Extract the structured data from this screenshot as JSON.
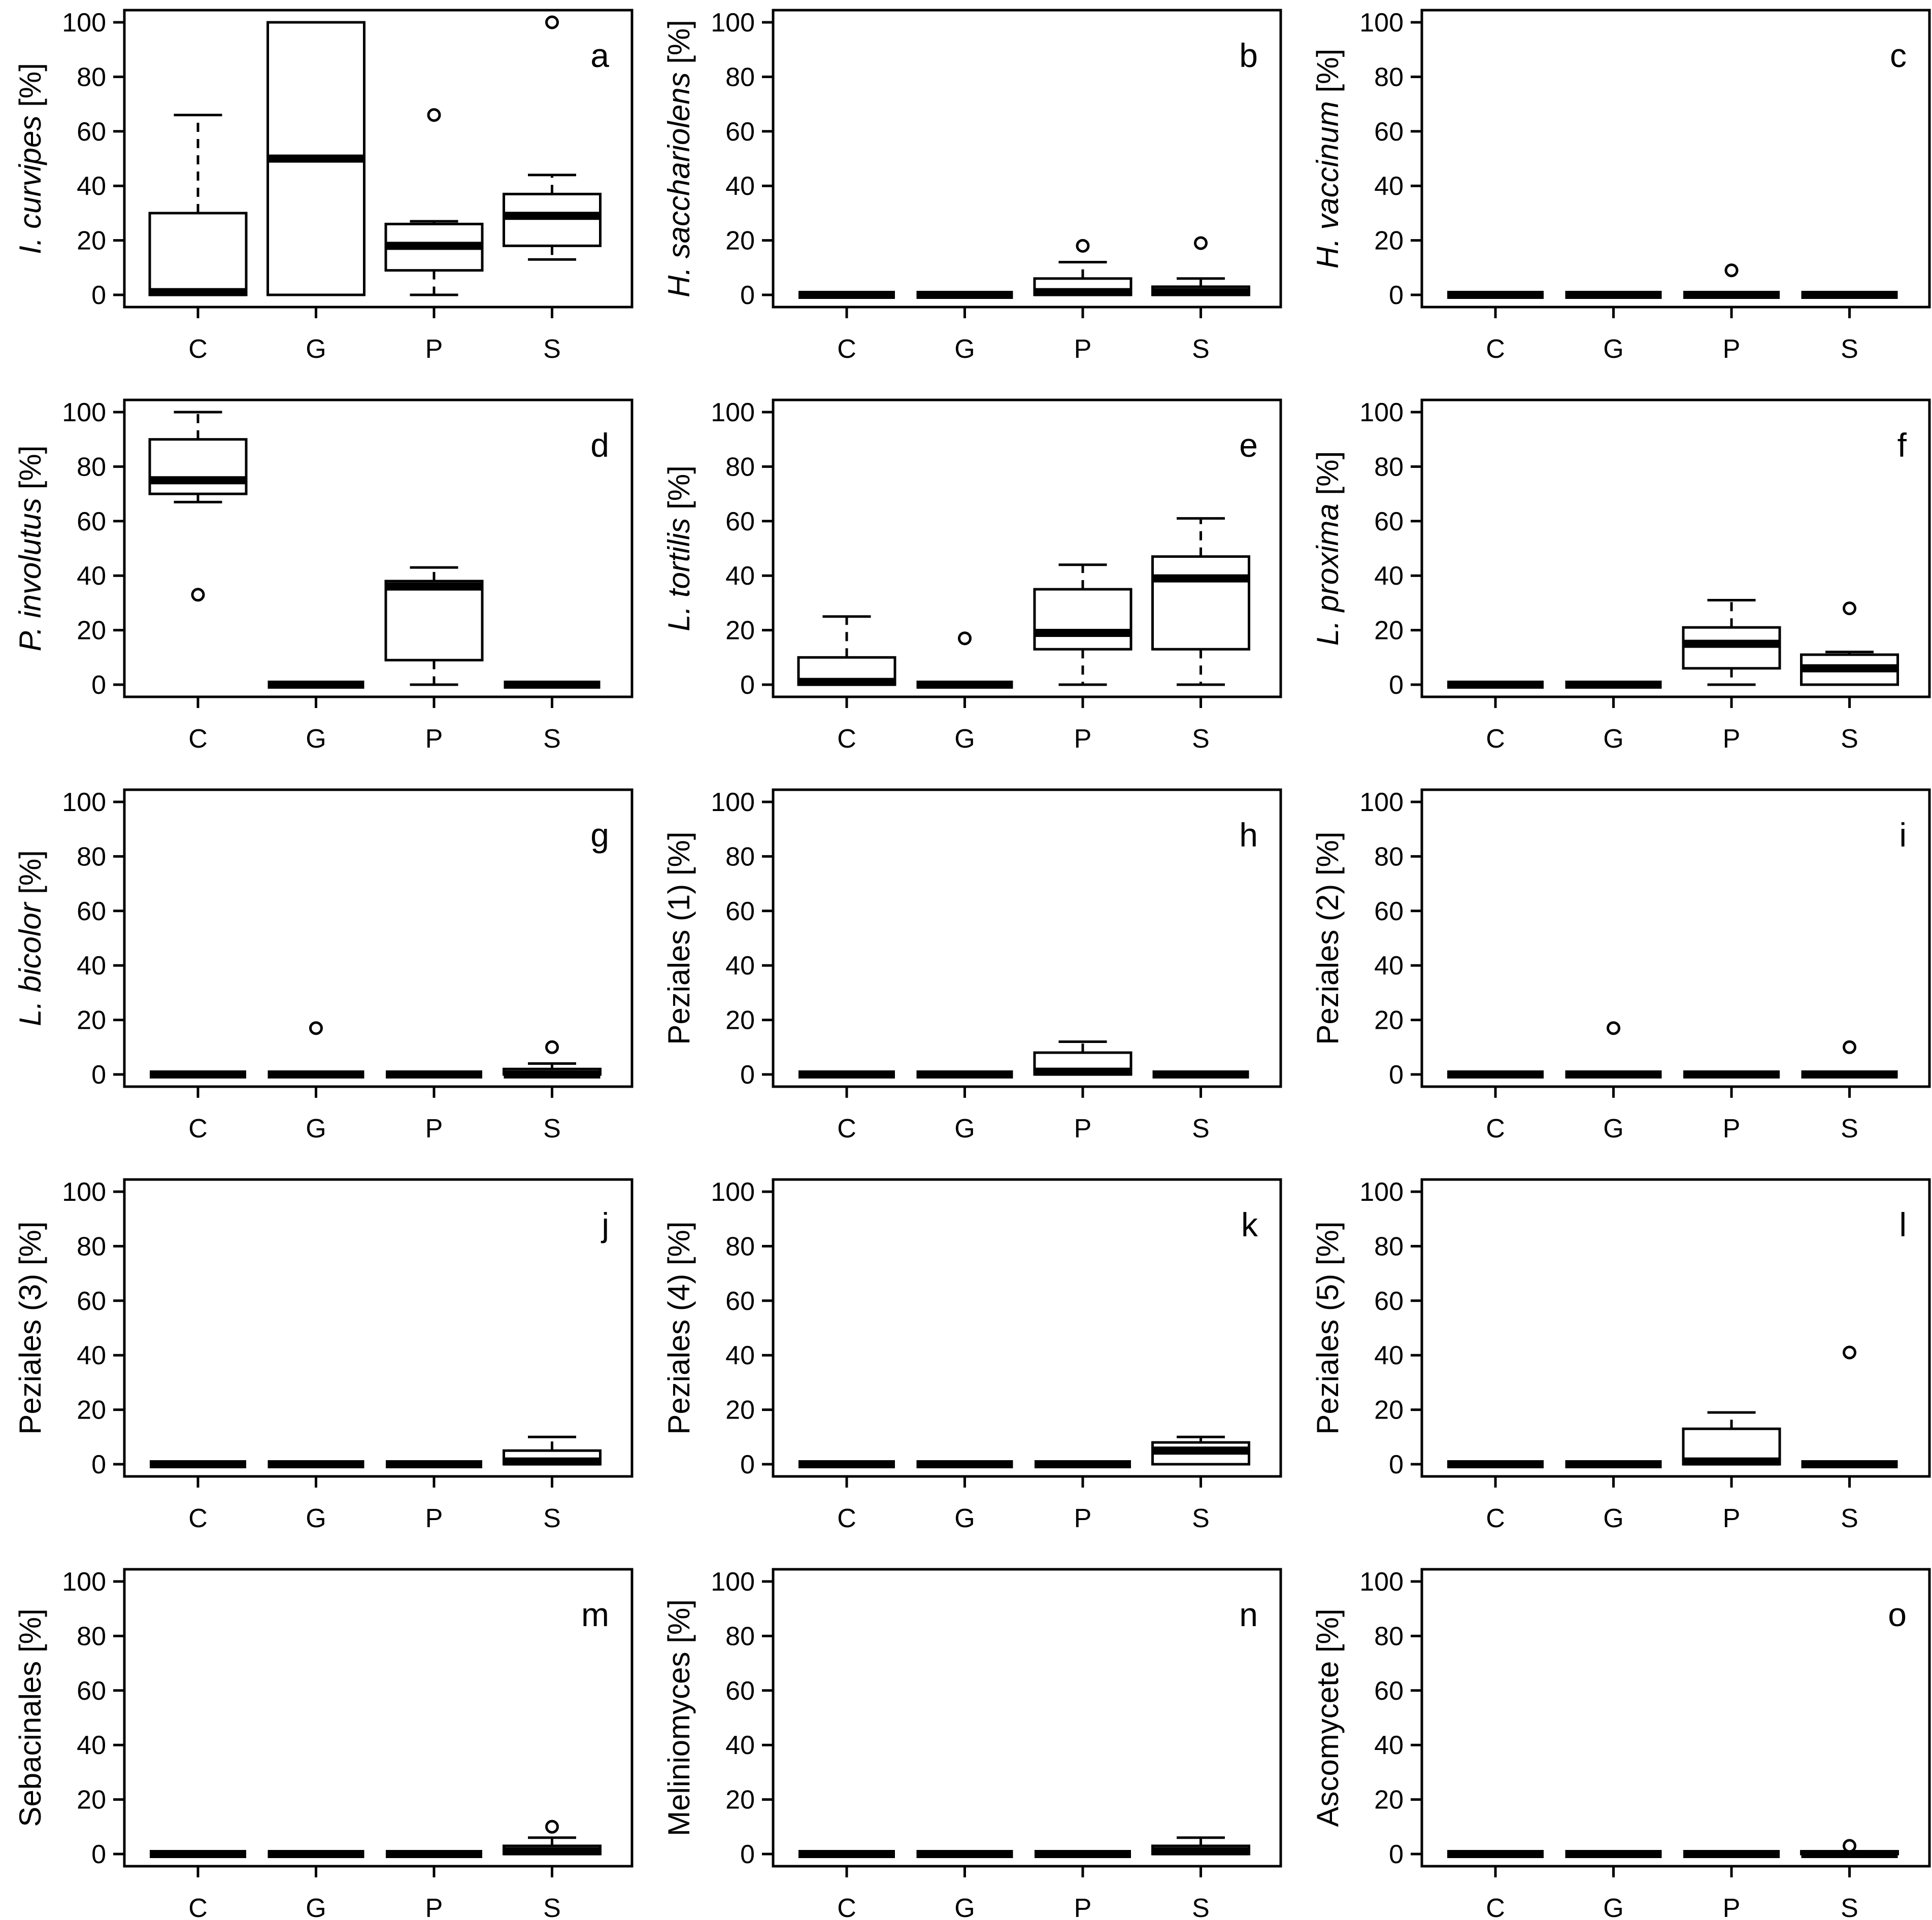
{
  "chart_data": [
    {
      "type": "boxplot",
      "panel_label": "a",
      "ylabel": "I. curvipes [%]",
      "ylabel_italic": "I. curvipes",
      "ylabel_plain": " [%]",
      "categories": [
        "C",
        "G",
        "P",
        "S"
      ],
      "ylim": [
        0,
        100
      ],
      "yticks": [
        "0",
        "20",
        "40",
        "60",
        "80",
        "100"
      ],
      "boxes": [
        {
          "min": 0,
          "q1": 0,
          "median": 1,
          "q3": 30,
          "max": 66,
          "outliers": []
        },
        {
          "min": 0,
          "q1": 0,
          "median": 50,
          "q3": 100,
          "max": 100,
          "outliers": []
        },
        {
          "min": 0,
          "q1": 9,
          "median": 18,
          "q3": 26,
          "max": 27,
          "outliers": [
            66
          ]
        },
        {
          "min": 13,
          "q1": 18,
          "median": 29,
          "q3": 37,
          "max": 44,
          "outliers": [
            100
          ]
        }
      ]
    },
    {
      "type": "boxplot",
      "panel_label": "b",
      "ylabel": "H. sacchariolens [%]",
      "ylabel_italic": "H. sacchariolens",
      "ylabel_plain": " [%]",
      "categories": [
        "C",
        "G",
        "P",
        "S"
      ],
      "ylim": [
        0,
        100
      ],
      "yticks": [
        "0",
        "20",
        "40",
        "60",
        "80",
        "100"
      ],
      "boxes": [
        {
          "min": 0,
          "q1": 0,
          "median": 0,
          "q3": 0,
          "max": 0,
          "outliers": []
        },
        {
          "min": 0,
          "q1": 0,
          "median": 0,
          "q3": 0,
          "max": 0,
          "outliers": []
        },
        {
          "min": 0,
          "q1": 0,
          "median": 1,
          "q3": 6,
          "max": 12,
          "outliers": [
            18
          ]
        },
        {
          "min": 0,
          "q1": 0,
          "median": 1,
          "q3": 3,
          "max": 6,
          "outliers": [
            19
          ]
        }
      ]
    },
    {
      "type": "boxplot",
      "panel_label": "c",
      "ylabel": "H. vaccinum [%]",
      "ylabel_italic": "H. vaccinum",
      "ylabel_plain": " [%]",
      "categories": [
        "C",
        "G",
        "P",
        "S"
      ],
      "ylim": [
        0,
        100
      ],
      "yticks": [
        "0",
        "20",
        "40",
        "60",
        "80",
        "100"
      ],
      "boxes": [
        {
          "min": 0,
          "q1": 0,
          "median": 0,
          "q3": 0,
          "max": 0,
          "outliers": []
        },
        {
          "min": 0,
          "q1": 0,
          "median": 0,
          "q3": 0,
          "max": 0,
          "outliers": []
        },
        {
          "min": 0,
          "q1": 0,
          "median": 0,
          "q3": 0,
          "max": 0,
          "outliers": [
            9
          ]
        },
        {
          "min": 0,
          "q1": 0,
          "median": 0,
          "q3": 0,
          "max": 0,
          "outliers": []
        }
      ]
    },
    {
      "type": "boxplot",
      "panel_label": "d",
      "ylabel": "P. involutus [%]",
      "ylabel_italic": "P. involutus",
      "ylabel_plain": " [%]",
      "categories": [
        "C",
        "G",
        "P",
        "S"
      ],
      "ylim": [
        0,
        100
      ],
      "yticks": [
        "0",
        "20",
        "40",
        "60",
        "80",
        "100"
      ],
      "boxes": [
        {
          "min": 67,
          "q1": 70,
          "median": 75,
          "q3": 90,
          "max": 100,
          "outliers": [
            33
          ]
        },
        {
          "min": 0,
          "q1": 0,
          "median": 0,
          "q3": 0,
          "max": 0,
          "outliers": []
        },
        {
          "min": 0,
          "q1": 9,
          "median": 36,
          "q3": 38,
          "max": 43,
          "outliers": []
        },
        {
          "min": 0,
          "q1": 0,
          "median": 0,
          "q3": 0,
          "max": 0,
          "outliers": []
        }
      ]
    },
    {
      "type": "boxplot",
      "panel_label": "e",
      "ylabel": "L. tortilis [%]",
      "ylabel_italic": "L. tortilis",
      "ylabel_plain": " [%]",
      "categories": [
        "C",
        "G",
        "P",
        "S"
      ],
      "ylim": [
        0,
        100
      ],
      "yticks": [
        "0",
        "20",
        "40",
        "60",
        "80",
        "100"
      ],
      "boxes": [
        {
          "min": 0,
          "q1": 0,
          "median": 1,
          "q3": 10,
          "max": 25,
          "outliers": []
        },
        {
          "min": 0,
          "q1": 0,
          "median": 0,
          "q3": 0,
          "max": 0,
          "outliers": [
            17
          ]
        },
        {
          "min": 0,
          "q1": 13,
          "median": 19,
          "q3": 35,
          "max": 44,
          "outliers": []
        },
        {
          "min": 0,
          "q1": 13,
          "median": 39,
          "q3": 47,
          "max": 61,
          "outliers": []
        }
      ]
    },
    {
      "type": "boxplot",
      "panel_label": "f",
      "ylabel": "L. proxima [%]",
      "ylabel_italic": "L. proxima",
      "ylabel_plain": " [%]",
      "categories": [
        "C",
        "G",
        "P",
        "S"
      ],
      "ylim": [
        0,
        100
      ],
      "yticks": [
        "0",
        "20",
        "40",
        "60",
        "80",
        "100"
      ],
      "boxes": [
        {
          "min": 0,
          "q1": 0,
          "median": 0,
          "q3": 0,
          "max": 0,
          "outliers": []
        },
        {
          "min": 0,
          "q1": 0,
          "median": 0,
          "q3": 0,
          "max": 0,
          "outliers": []
        },
        {
          "min": 0,
          "q1": 6,
          "median": 15,
          "q3": 21,
          "max": 31,
          "outliers": []
        },
        {
          "min": 0,
          "q1": 0,
          "median": 6,
          "q3": 11,
          "max": 12,
          "outliers": [
            28
          ]
        }
      ]
    },
    {
      "type": "boxplot",
      "panel_label": "g",
      "ylabel": "L. bicolor [%]",
      "ylabel_italic": "L. bicolor",
      "ylabel_plain": " [%]",
      "categories": [
        "C",
        "G",
        "P",
        "S"
      ],
      "ylim": [
        0,
        100
      ],
      "yticks": [
        "0",
        "20",
        "40",
        "60",
        "80",
        "100"
      ],
      "boxes": [
        {
          "min": 0,
          "q1": 0,
          "median": 0,
          "q3": 0,
          "max": 0,
          "outliers": []
        },
        {
          "min": 0,
          "q1": 0,
          "median": 0,
          "q3": 0,
          "max": 0,
          "outliers": [
            17
          ]
        },
        {
          "min": 0,
          "q1": 0,
          "median": 0,
          "q3": 0,
          "max": 0,
          "outliers": []
        },
        {
          "min": 0,
          "q1": 0,
          "median": 0,
          "q3": 2,
          "max": 4,
          "outliers": [
            10
          ]
        }
      ]
    },
    {
      "type": "boxplot",
      "panel_label": "h",
      "ylabel": "Peziales (1) [%]",
      "ylabel_italic": "",
      "ylabel_plain": "Peziales (1) [%]",
      "categories": [
        "C",
        "G",
        "P",
        "S"
      ],
      "ylim": [
        0,
        100
      ],
      "yticks": [
        "0",
        "20",
        "40",
        "60",
        "80",
        "100"
      ],
      "boxes": [
        {
          "min": 0,
          "q1": 0,
          "median": 0,
          "q3": 0,
          "max": 0,
          "outliers": []
        },
        {
          "min": 0,
          "q1": 0,
          "median": 0,
          "q3": 0,
          "max": 0,
          "outliers": []
        },
        {
          "min": 0,
          "q1": 0,
          "median": 1,
          "q3": 8,
          "max": 12,
          "outliers": []
        },
        {
          "min": 0,
          "q1": 0,
          "median": 0,
          "q3": 0,
          "max": 0,
          "outliers": []
        }
      ]
    },
    {
      "type": "boxplot",
      "panel_label": "i",
      "ylabel": "Peziales (2) [%]",
      "ylabel_italic": "",
      "ylabel_plain": "Peziales (2) [%]",
      "categories": [
        "C",
        "G",
        "P",
        "S"
      ],
      "ylim": [
        0,
        100
      ],
      "yticks": [
        "0",
        "20",
        "40",
        "60",
        "80",
        "100"
      ],
      "boxes": [
        {
          "min": 0,
          "q1": 0,
          "median": 0,
          "q3": 0,
          "max": 0,
          "outliers": []
        },
        {
          "min": 0,
          "q1": 0,
          "median": 0,
          "q3": 0,
          "max": 0,
          "outliers": [
            17
          ]
        },
        {
          "min": 0,
          "q1": 0,
          "median": 0,
          "q3": 0,
          "max": 0,
          "outliers": []
        },
        {
          "min": 0,
          "q1": 0,
          "median": 0,
          "q3": 0,
          "max": 0,
          "outliers": [
            10
          ]
        }
      ]
    },
    {
      "type": "boxplot",
      "panel_label": "j",
      "ylabel": "Peziales (3) [%]",
      "ylabel_italic": "",
      "ylabel_plain": "Peziales (3) [%]",
      "categories": [
        "C",
        "G",
        "P",
        "S"
      ],
      "ylim": [
        0,
        100
      ],
      "yticks": [
        "0",
        "20",
        "40",
        "60",
        "80",
        "100"
      ],
      "boxes": [
        {
          "min": 0,
          "q1": 0,
          "median": 0,
          "q3": 0,
          "max": 0,
          "outliers": []
        },
        {
          "min": 0,
          "q1": 0,
          "median": 0,
          "q3": 0,
          "max": 0,
          "outliers": []
        },
        {
          "min": 0,
          "q1": 0,
          "median": 0,
          "q3": 0,
          "max": 0,
          "outliers": []
        },
        {
          "min": 0,
          "q1": 0,
          "median": 1,
          "q3": 5,
          "max": 10,
          "outliers": []
        }
      ]
    },
    {
      "type": "boxplot",
      "panel_label": "k",
      "ylabel": "Peziales (4) [%]",
      "ylabel_italic": "",
      "ylabel_plain": "Peziales (4) [%]",
      "categories": [
        "C",
        "G",
        "P",
        "S"
      ],
      "ylim": [
        0,
        100
      ],
      "yticks": [
        "0",
        "20",
        "40",
        "60",
        "80",
        "100"
      ],
      "boxes": [
        {
          "min": 0,
          "q1": 0,
          "median": 0,
          "q3": 0,
          "max": 0,
          "outliers": []
        },
        {
          "min": 0,
          "q1": 0,
          "median": 0,
          "q3": 0,
          "max": 0,
          "outliers": []
        },
        {
          "min": 0,
          "q1": 0,
          "median": 0,
          "q3": 0,
          "max": 0,
          "outliers": []
        },
        {
          "min": 0,
          "q1": 0,
          "median": 5,
          "q3": 8,
          "max": 10,
          "outliers": []
        }
      ]
    },
    {
      "type": "boxplot",
      "panel_label": "l",
      "ylabel": "Peziales (5) [%]",
      "ylabel_italic": "",
      "ylabel_plain": "Peziales (5) [%]",
      "categories": [
        "C",
        "G",
        "P",
        "S"
      ],
      "ylim": [
        0,
        100
      ],
      "yticks": [
        "0",
        "20",
        "40",
        "60",
        "80",
        "100"
      ],
      "boxes": [
        {
          "min": 0,
          "q1": 0,
          "median": 0,
          "q3": 0,
          "max": 0,
          "outliers": []
        },
        {
          "min": 0,
          "q1": 0,
          "median": 0,
          "q3": 0,
          "max": 0,
          "outliers": []
        },
        {
          "min": 0,
          "q1": 0,
          "median": 1,
          "q3": 13,
          "max": 19,
          "outliers": []
        },
        {
          "min": 0,
          "q1": 0,
          "median": 0,
          "q3": 0,
          "max": 0,
          "outliers": [
            41
          ]
        }
      ]
    },
    {
      "type": "boxplot",
      "panel_label": "m",
      "ylabel": "Sebacinales [%]",
      "ylabel_italic": "",
      "ylabel_plain": "Sebacinales [%]",
      "categories": [
        "C",
        "G",
        "P",
        "S"
      ],
      "ylim": [
        0,
        100
      ],
      "yticks": [
        "0",
        "20",
        "40",
        "60",
        "80",
        "100"
      ],
      "boxes": [
        {
          "min": 0,
          "q1": 0,
          "median": 0,
          "q3": 0,
          "max": 0,
          "outliers": []
        },
        {
          "min": 0,
          "q1": 0,
          "median": 0,
          "q3": 0,
          "max": 0,
          "outliers": []
        },
        {
          "min": 0,
          "q1": 0,
          "median": 0,
          "q3": 0,
          "max": 0,
          "outliers": []
        },
        {
          "min": 0,
          "q1": 0,
          "median": 1,
          "q3": 3,
          "max": 6,
          "outliers": [
            10
          ]
        }
      ]
    },
    {
      "type": "boxplot",
      "panel_label": "n",
      "ylabel": "Meliniomyces [%]",
      "ylabel_italic": "",
      "ylabel_plain": "Meliniomyces [%]",
      "categories": [
        "C",
        "G",
        "P",
        "S"
      ],
      "ylim": [
        0,
        100
      ],
      "yticks": [
        "0",
        "20",
        "40",
        "60",
        "80",
        "100"
      ],
      "boxes": [
        {
          "min": 0,
          "q1": 0,
          "median": 0,
          "q3": 0,
          "max": 0,
          "outliers": []
        },
        {
          "min": 0,
          "q1": 0,
          "median": 0,
          "q3": 0,
          "max": 0,
          "outliers": []
        },
        {
          "min": 0,
          "q1": 0,
          "median": 0,
          "q3": 0,
          "max": 0,
          "outliers": []
        },
        {
          "min": 0,
          "q1": 0,
          "median": 1,
          "q3": 3,
          "max": 6,
          "outliers": []
        }
      ]
    },
    {
      "type": "boxplot",
      "panel_label": "o",
      "ylabel": "Ascomycete [%]",
      "ylabel_italic": "",
      "ylabel_plain": "Ascomycete [%]",
      "categories": [
        "C",
        "G",
        "P",
        "S"
      ],
      "ylim": [
        0,
        100
      ],
      "yticks": [
        "0",
        "20",
        "40",
        "60",
        "80",
        "100"
      ],
      "boxes": [
        {
          "min": 0,
          "q1": 0,
          "median": 0,
          "q3": 0,
          "max": 0,
          "outliers": []
        },
        {
          "min": 0,
          "q1": 0,
          "median": 0,
          "q3": 0,
          "max": 0,
          "outliers": []
        },
        {
          "min": 0,
          "q1": 0,
          "median": 0,
          "q3": 0,
          "max": 0,
          "outliers": []
        },
        {
          "min": 0,
          "q1": 0,
          "median": 0,
          "q3": 1,
          "max": 1,
          "outliers": [
            3
          ]
        }
      ]
    }
  ]
}
